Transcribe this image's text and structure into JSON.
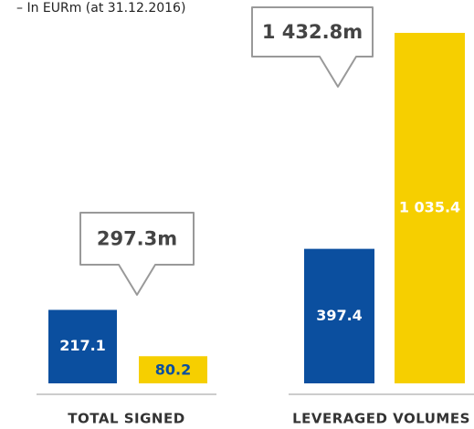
{
  "chart_data": {
    "type": "bar",
    "subtitle": "– In EURm (at 31.12.2016)",
    "categories": [
      "TOTAL SIGNED",
      "LEVERAGED VOLUMES"
    ],
    "series": [
      {
        "color": "#0b4f9f",
        "values": [
          217.1,
          397.4
        ]
      },
      {
        "color": "#f6cf00",
        "values": [
          80.2,
          1035.4
        ],
        "value_labels": [
          "80.2",
          "1 035.4"
        ],
        "label_colors": [
          "#0b4f9f",
          "#ffffff"
        ]
      }
    ],
    "annotations": [
      "297.3m",
      "1 432.8m"
    ]
  }
}
